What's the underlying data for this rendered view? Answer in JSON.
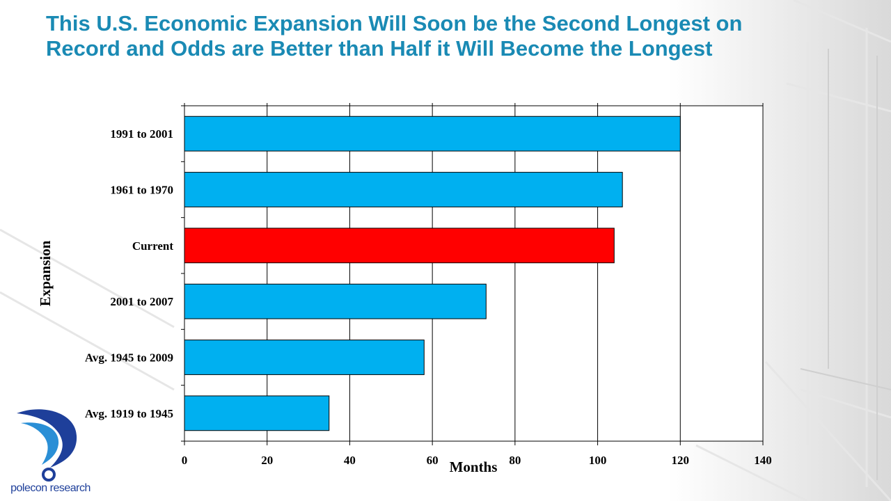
{
  "slide": {
    "title": "This U.S. Economic Expansion Will Soon be the Second Longest on Record and Odds are Better than Half it Will Become the Longest"
  },
  "logo": {
    "name": "polecon research"
  },
  "colors": {
    "title": "#1a8ab4",
    "bar": "#00b0f0",
    "highlight": "#ff0000",
    "logo": "#1e3f9a"
  },
  "chart_data": {
    "type": "bar",
    "orientation": "horizontal",
    "title": "",
    "xlabel": "Months",
    "ylabel": "Expansion",
    "xlim": [
      0,
      140
    ],
    "xticks": [
      0,
      20,
      40,
      60,
      80,
      100,
      120,
      140
    ],
    "grid": "vertical",
    "categories": [
      "1991 to 2001",
      "1961 to 1970",
      "Current",
      "2001 to 2007",
      "Avg. 1945 to 2009",
      "Avg. 1919 to 1945"
    ],
    "values": [
      120,
      106,
      104,
      73,
      58,
      35
    ],
    "highlight_category": "Current"
  }
}
